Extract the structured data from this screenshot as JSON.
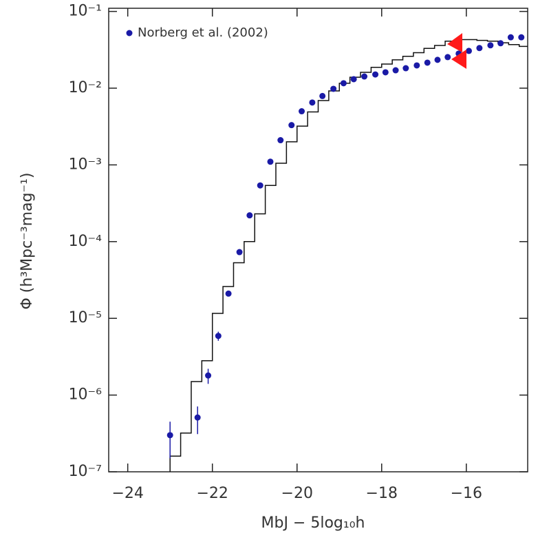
{
  "chart_data": {
    "type": "scatter",
    "x_label": "MbJ − 5log₁₀h",
    "y_label": "Φ (h³Mpc⁻³mag⁻¹)",
    "xlim": [
      -24.45,
      -14.55
    ],
    "xticks": [
      {
        "value": -24,
        "label": "−24"
      },
      {
        "value": -22,
        "label": "−22"
      },
      {
        "value": -20,
        "label": "−20"
      },
      {
        "value": -18,
        "label": "−18"
      },
      {
        "value": -16,
        "label": "−16"
      }
    ],
    "ylim": [
      1e-07,
      0.11
    ],
    "yscale": "log",
    "yticks": [
      {
        "value": 1e-07,
        "label": "10⁻⁷"
      },
      {
        "value": 1e-06,
        "label": "10⁻⁶"
      },
      {
        "value": 1e-05,
        "label": "10⁻⁵"
      },
      {
        "value": 0.0001,
        "label": "10⁻⁴"
      },
      {
        "value": 0.001,
        "label": "10⁻³"
      },
      {
        "value": 0.01,
        "label": "10⁻²"
      },
      {
        "value": 0.1,
        "label": "10⁻¹"
      }
    ],
    "grid": false,
    "legend": "upper left",
    "series": [
      {
        "name": "Norberg et al. (2002)",
        "color": "#1a1aa6",
        "x": [
          -23.0,
          -22.35,
          -22.1,
          -21.86,
          -21.62,
          -21.36,
          -21.12,
          -20.87,
          -20.63,
          -20.39,
          -20.13,
          -19.89,
          -19.64,
          -19.4,
          -19.14,
          -18.9,
          -18.66,
          -18.41,
          -18.15,
          -17.91,
          -17.67,
          -17.43,
          -17.17,
          -16.92,
          -16.68,
          -16.44,
          -16.18,
          -15.94,
          -15.69,
          -15.43,
          -15.19,
          -14.95,
          -14.7
        ],
        "values": [
          3e-07,
          5.1e-07,
          1.8e-06,
          5.9e-06,
          2.1e-05,
          7.3e-05,
          0.00022,
          0.00054,
          0.0011,
          0.0021,
          0.0033,
          0.005,
          0.0065,
          0.0079,
          0.0098,
          0.0116,
          0.0131,
          0.0142,
          0.0151,
          0.0161,
          0.0171,
          0.0182,
          0.0198,
          0.0215,
          0.0234,
          0.0254,
          0.0282,
          0.0306,
          0.0333,
          0.0362,
          0.0385,
          0.046,
          0.046
        ],
        "errors": [
          1.5e-07,
          2e-07,
          4e-07,
          8e-07,
          null,
          null,
          null,
          null,
          null,
          null,
          null,
          null,
          null,
          null,
          null,
          null,
          null,
          null,
          null,
          null,
          null,
          null,
          null,
          null,
          null,
          null,
          null,
          null,
          null,
          null,
          null,
          null,
          null
        ]
      }
    ],
    "model": {
      "color": "#111111",
      "bins": [
        -23.0,
        -22.75,
        -22.5,
        -22.25,
        -22.0,
        -21.75,
        -21.5,
        -21.25,
        -21.0,
        -20.75,
        -20.5,
        -20.25,
        -20.0,
        -19.75,
        -19.5,
        -19.25,
        -19.0,
        -18.75,
        -18.5,
        -18.25,
        -18.0,
        -17.75,
        -17.5,
        -17.25,
        -17.0,
        -16.75,
        -16.5,
        -16.25,
        -16.0,
        -15.75,
        -15.5,
        -15.25,
        -15.0,
        -14.75,
        -14.5
      ],
      "values": [
        1.6e-07,
        3.2e-07,
        1.5e-06,
        2.8e-06,
        1.16e-05,
        2.6e-05,
        5.3e-05,
        0.0001,
        0.00023,
        0.00054,
        0.00105,
        0.002,
        0.0032,
        0.0049,
        0.0069,
        0.0092,
        0.0116,
        0.0139,
        0.0161,
        0.0187,
        0.0206,
        0.0234,
        0.026,
        0.029,
        0.033,
        0.036,
        0.041,
        0.043,
        0.043,
        0.042,
        0.041,
        0.039,
        0.037,
        0.035
      ]
    }
  }
}
